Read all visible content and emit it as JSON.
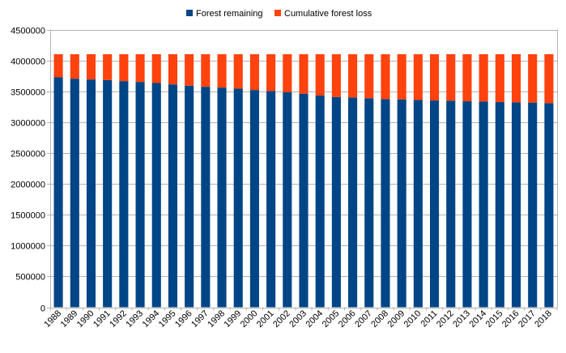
{
  "chart_data": {
    "type": "bar",
    "stacked": true,
    "title": "",
    "xlabel": "",
    "ylabel": "",
    "ylim": [
      0,
      4500000
    ],
    "yticks": [
      0,
      500000,
      1000000,
      1500000,
      2000000,
      2500000,
      3000000,
      3500000,
      4000000,
      4500000
    ],
    "grid": true,
    "legend": "top",
    "categories": [
      "1988",
      "1989",
      "1990",
      "1991",
      "1992",
      "1993",
      "1994",
      "1995",
      "1996",
      "1997",
      "1998",
      "1999",
      "2000",
      "2001",
      "2002",
      "2003",
      "2004",
      "2005",
      "2006",
      "2007",
      "2008",
      "2009",
      "2010",
      "2011",
      "2012",
      "2013",
      "2014",
      "2015",
      "2016",
      "2017",
      "2018"
    ],
    "series": [
      {
        "name": "Forest remaining",
        "color": "#004586",
        "values": [
          3726000,
          3704000,
          3691000,
          3682000,
          3665000,
          3652000,
          3634000,
          3612000,
          3591000,
          3573000,
          3560000,
          3543000,
          3521000,
          3504000,
          3487000,
          3461000,
          3430000,
          3408000,
          3400000,
          3387000,
          3373000,
          3369000,
          3360000,
          3351000,
          3347000,
          3338000,
          3334000,
          3325000,
          3321000,
          3317000,
          3308000
        ]
      },
      {
        "name": "Cumulative forest loss",
        "color": "#ff420e",
        "values": [
          374000,
          396000,
          409000,
          418000,
          435000,
          448000,
          466000,
          488000,
          509000,
          527000,
          540000,
          557000,
          579000,
          596000,
          613000,
          639000,
          670000,
          692000,
          700000,
          713000,
          727000,
          731000,
          740000,
          749000,
          753000,
          762000,
          766000,
          775000,
          779000,
          783000,
          792000
        ]
      }
    ]
  }
}
